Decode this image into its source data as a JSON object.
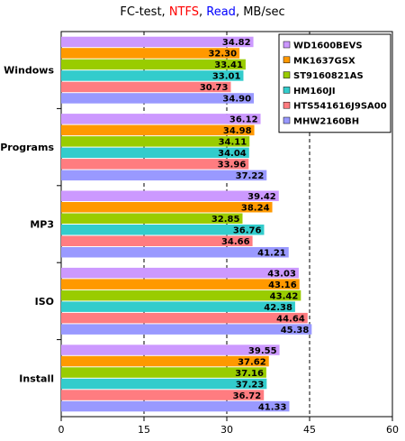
{
  "title": {
    "part1": "FC-test, ",
    "part2": "NTFS",
    "part3": ", ",
    "part4": "Read",
    "part5": ", MB/sec",
    "part2_color": "#ff0000",
    "part4_color": "#0000ff"
  },
  "chart_data": {
    "type": "bar",
    "orientation": "horizontal",
    "categories": [
      "Windows",
      "Programs",
      "MP3",
      "ISO",
      "Install"
    ],
    "series": [
      {
        "name": "WD1600BEVS",
        "color": "#cc99ff",
        "values": [
          34.82,
          36.12,
          39.42,
          43.03,
          39.55
        ]
      },
      {
        "name": "MK1637GSX",
        "color": "#ff9900",
        "values": [
          32.3,
          34.98,
          38.24,
          43.16,
          37.62
        ]
      },
      {
        "name": "ST9160821AS",
        "color": "#99cc00",
        "values": [
          33.41,
          34.11,
          32.85,
          43.42,
          37.16
        ]
      },
      {
        "name": "HM160JI",
        "color": "#33cccc",
        "values": [
          33.01,
          34.04,
          36.76,
          42.38,
          37.23
        ]
      },
      {
        "name": "HTS541616J9SA00",
        "color": "#ff7c80",
        "values": [
          30.73,
          33.96,
          34.66,
          44.64,
          36.72
        ]
      },
      {
        "name": "MHW2160BH",
        "color": "#9999ff",
        "values": [
          34.9,
          37.22,
          41.21,
          45.38,
          41.33
        ]
      }
    ],
    "xlim": [
      0,
      60
    ],
    "xticks": [
      "0",
      "15",
      "30",
      "45",
      "60"
    ],
    "gridlines": "vertical dashed",
    "legend_position": "top-right"
  }
}
